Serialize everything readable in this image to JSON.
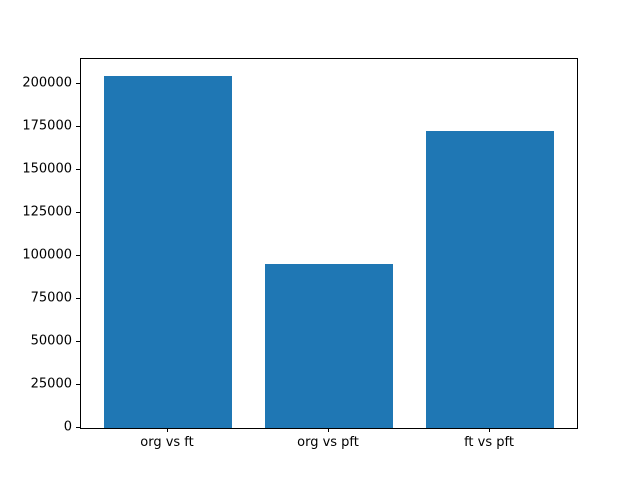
{
  "chart_data": {
    "type": "bar",
    "categories": [
      "org vs ft",
      "org vs pft",
      "ft vs pft"
    ],
    "values": [
      204600,
      95700,
      173000
    ],
    "title": "",
    "xlabel": "",
    "ylabel": "",
    "ylim": [
      0,
      214700
    ],
    "yticks": [
      0,
      25000,
      50000,
      75000,
      100000,
      125000,
      150000,
      175000,
      200000
    ],
    "bar_color": "#1f77b4",
    "grid": false,
    "legend": null
  }
}
